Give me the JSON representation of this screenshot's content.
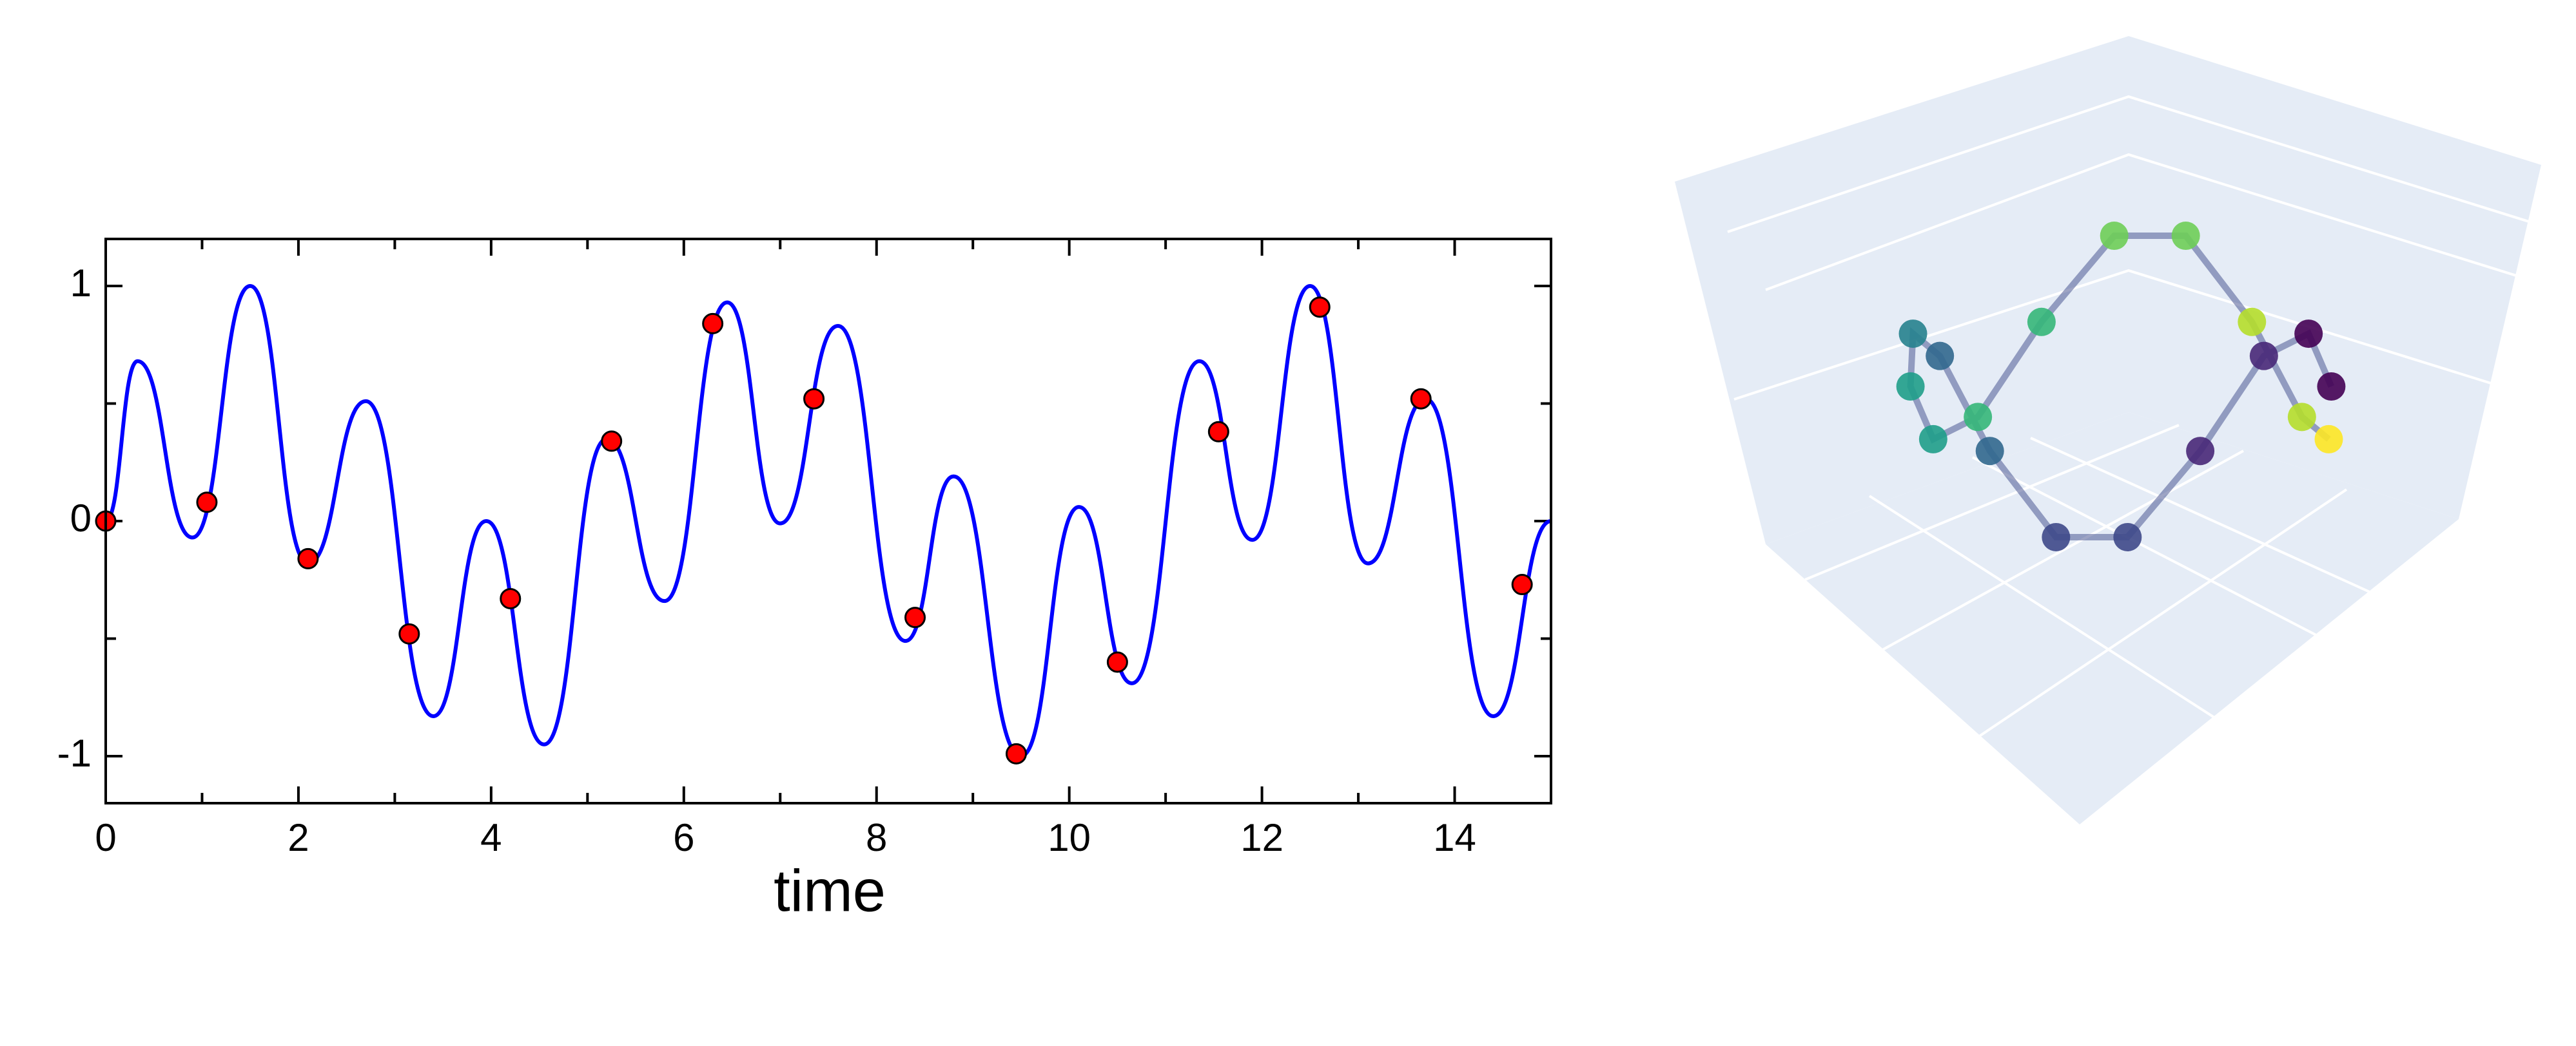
{
  "chart_data": [
    {
      "type": "line",
      "xlabel": "time",
      "xlim": [
        0,
        15
      ],
      "ylim": [
        -1.2,
        1.2
      ],
      "xticks": [
        0,
        2,
        4,
        6,
        8,
        10,
        12,
        14
      ],
      "xminorticks": [
        1,
        3,
        5,
        7,
        9,
        11,
        13,
        15
      ],
      "yticks": [
        -1,
        0,
        1
      ],
      "yminorticks": [
        -0.5,
        0.5
      ],
      "series": [
        {
          "type": "line",
          "color": "#0000ff",
          "x": [
            0,
            0.33,
            0.9,
            1.5,
            2.1,
            2.7,
            3.4,
            3.95,
            4.55,
            5.2,
            5.8,
            6.45,
            7.0,
            7.6,
            8.3,
            8.8,
            9.5,
            10.1,
            10.65,
            11.35,
            11.9,
            12.5,
            13.1,
            13.7,
            14.4,
            15
          ],
          "values": [
            0,
            0.68,
            -0.07,
            1.0,
            -0.18,
            0.51,
            -0.83,
            0.0,
            -0.95,
            0.35,
            -0.34,
            0.93,
            -0.01,
            0.83,
            -0.51,
            0.19,
            -1.0,
            0.06,
            -0.69,
            0.68,
            -0.08,
            1.0,
            -0.18,
            0.52,
            -0.83,
            0
          ]
        },
        {
          "type": "scatter",
          "color": "#ff0000",
          "x": [
            0,
            1.05,
            2.1,
            3.15,
            4.2,
            5.25,
            6.3,
            7.35,
            8.4,
            9.45,
            10.5,
            11.55,
            12.6,
            13.65,
            14.7
          ],
          "values": [
            0,
            0.08,
            -0.16,
            -0.48,
            -0.33,
            0.34,
            0.84,
            0.52,
            -0.41,
            -0.99,
            -0.6,
            0.38,
            0.91,
            0.52,
            -0.27
          ]
        }
      ]
    },
    {
      "type": "scatter3d",
      "colorscale": "Viridis",
      "x": [
        1,
        0.94,
        0.77,
        0.5,
        0.17,
        -0.17,
        -0.5,
        -0.77,
        -0.94,
        -1,
        -0.94,
        -0.77,
        -0.5,
        -0.17,
        0.17,
        0.5,
        0.77,
        0.94
      ],
      "y": [
        0,
        0.34,
        0.64,
        0.87,
        0.98,
        0.98,
        0.87,
        0.64,
        0.34,
        0,
        -0.34,
        -0.64,
        -0.87,
        -0.98,
        -0.98,
        -0.87,
        -0.64,
        -0.34
      ],
      "z": [
        0,
        0.43,
        0.43,
        0,
        -0.43,
        -0.43,
        0,
        0.43,
        0.43,
        0,
        -0.43,
        -0.43,
        0,
        0.43,
        0.43,
        0,
        -0.43,
        -0.43
      ]
    }
  ]
}
